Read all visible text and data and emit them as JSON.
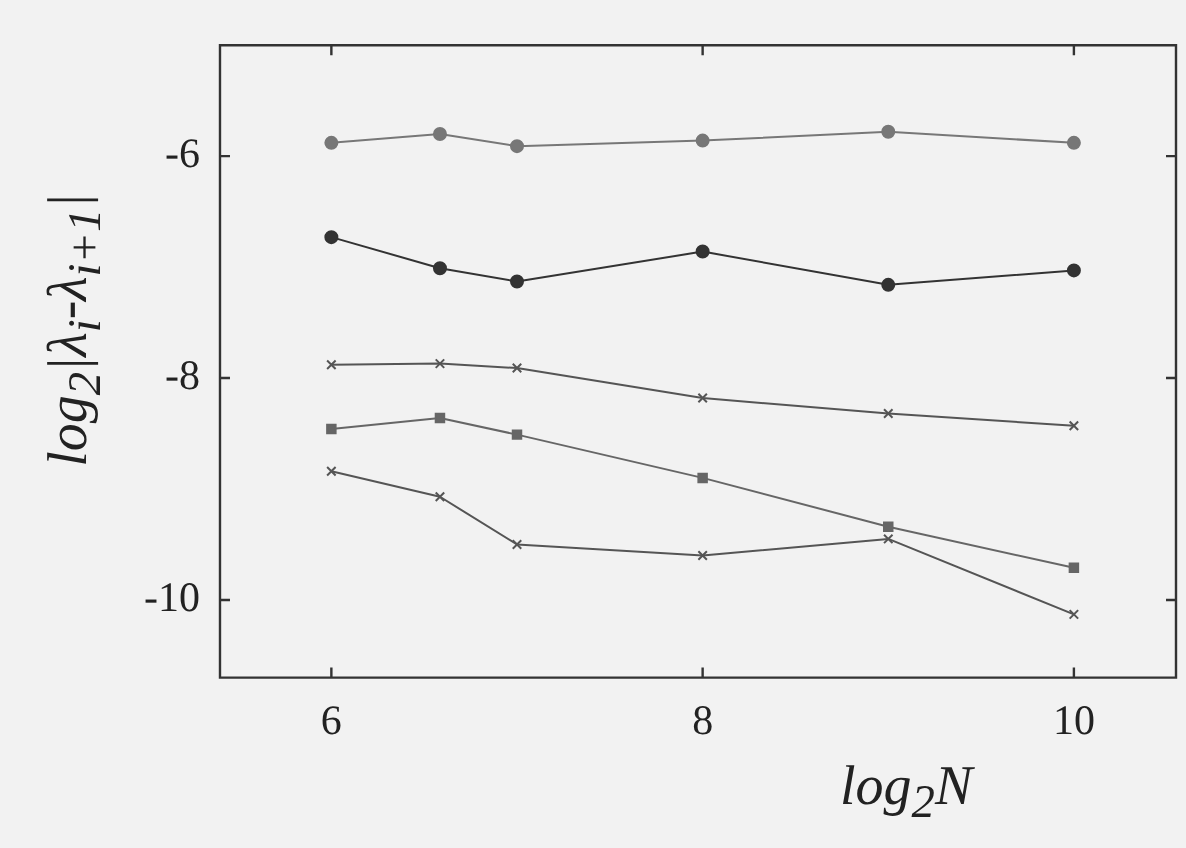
{
  "chart_data": {
    "type": "line",
    "xlabel": "log$_{2}$N",
    "ylabel": "log$_{2}$|λ$_{i}$-λ$_{i+1}$|",
    "x": [
      6,
      6.585,
      7,
      8,
      9,
      10
    ],
    "xlim": [
      5.4,
      10.55
    ],
    "xticks": [
      6,
      8,
      10
    ],
    "ylim": [
      -10.7,
      -5
    ],
    "yticks": [
      -10,
      -8,
      -6
    ],
    "grid": false,
    "legend": false,
    "line_style": "solid",
    "series": [
      {
        "color": "#777777",
        "marker": "circle",
        "values": [
          -5.88,
          -5.8,
          -5.91,
          -5.86,
          -5.78,
          -5.88
        ]
      },
      {
        "color": "#333333",
        "marker": "circle",
        "values": [
          -6.73,
          -7.01,
          -7.13,
          -6.86,
          -7.16,
          -7.03
        ]
      },
      {
        "color": "#555555",
        "marker": "cross",
        "values": [
          -7.88,
          -7.87,
          -7.91,
          -8.18,
          -8.32,
          -8.43
        ]
      },
      {
        "color": "#666666",
        "marker": "square",
        "values": [
          -8.46,
          -8.36,
          -8.51,
          -8.9,
          -9.34,
          -9.71
        ]
      },
      {
        "color": "#555555",
        "marker": "cross",
        "values": [
          -8.84,
          -9.07,
          -9.5,
          -9.6,
          -9.45,
          -10.13
        ]
      }
    ]
  }
}
